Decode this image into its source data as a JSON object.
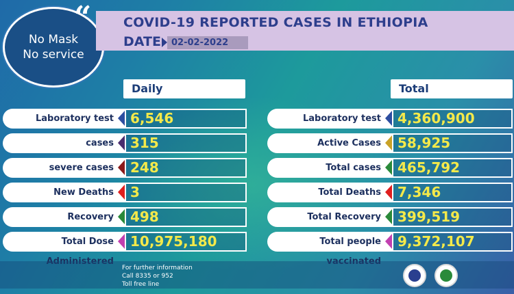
{
  "slogan": {
    "line1": "No Mask",
    "line2": "No service"
  },
  "header": {
    "title": "COVID-19 REPORTED CASES IN ETHIOPIA",
    "date_label": "DATE",
    "date": "02-02-2022"
  },
  "daily": {
    "heading": "Daily",
    "rows": [
      {
        "label": "Laboratory test",
        "value": "6,546",
        "accent": "#2d4ea0"
      },
      {
        "label": "cases",
        "value": "315",
        "accent": "#4a2d6e"
      },
      {
        "label": "severe cases",
        "value": "248",
        "accent": "#8b1a1a"
      },
      {
        "label": "New Deaths",
        "value": "3",
        "accent": "#e01e1e"
      },
      {
        "label": "Recovery",
        "value": "498",
        "accent": "#2a8a3a"
      },
      {
        "label": "Total Dose Administered",
        "value": "10,975,180",
        "accent": "#c23fb0"
      }
    ]
  },
  "total": {
    "heading": "Total",
    "rows": [
      {
        "label": "Laboratory test",
        "value": "4,360,900",
        "accent": "#2d4ea0"
      },
      {
        "label": "Active Cases",
        "value": "58,925",
        "accent": "#c9a227"
      },
      {
        "label": "Total cases",
        "value": "465,792",
        "accent": "#2a8a3a"
      },
      {
        "label": "Total Deaths",
        "value": "7,346",
        "accent": "#e01e1e"
      },
      {
        "label": "Total Recovery",
        "value": "399,519",
        "accent": "#2a8a3a"
      },
      {
        "label": "Total people vaccinated",
        "value": "9,372,107",
        "accent": "#c23fb0"
      }
    ]
  },
  "footer": {
    "line1": "For further information",
    "line2": "Call 8335 or 952",
    "line3": "Toll free line"
  },
  "logos": [
    {
      "name": "health-ministry-logo",
      "color": "#2a3f8f"
    },
    {
      "name": "ephi-logo",
      "color": "#2a8a3a"
    }
  ]
}
